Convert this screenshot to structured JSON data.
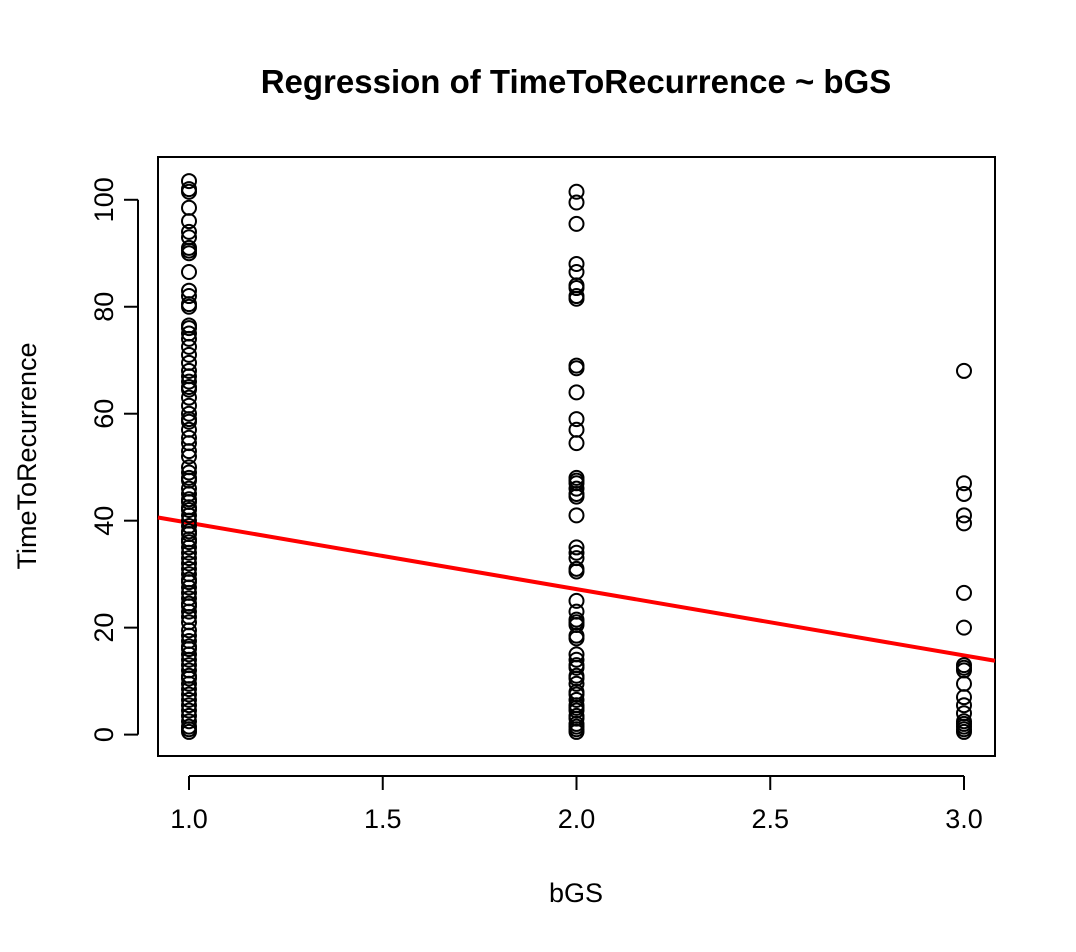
{
  "chart_data": {
    "type": "scatter",
    "title": "Regression of TimeToRecurrence ~ bGS",
    "xlabel": "bGS",
    "ylabel": "TimeToRecurrence",
    "xlim": [
      0.92,
      3.08
    ],
    "ylim": [
      -4,
      108
    ],
    "xticks": [
      1.0,
      1.5,
      2.0,
      2.5,
      3.0
    ],
    "xtick_labels": [
      "1.0",
      "1.5",
      "2.0",
      "2.5",
      "3.0"
    ],
    "yticks": [
      0,
      20,
      40,
      60,
      80,
      100
    ],
    "ytick_labels": [
      "0",
      "20",
      "40",
      "60",
      "80",
      "100"
    ],
    "grid": false,
    "point_color": "#000000",
    "regression_color": "#ff0000",
    "regression_line": {
      "intercept": 52.0,
      "slope": -12.4
    },
    "series": [
      {
        "x": 1.0,
        "y": [
          103.5,
          102,
          101.5,
          98.5,
          96,
          94,
          93,
          91,
          90.5,
          90,
          86.5,
          83,
          82,
          80.5,
          80,
          76.5,
          76,
          75,
          74,
          72.5,
          71,
          69.5,
          68,
          67,
          66,
          65,
          64.5,
          63,
          61.5,
          60,
          59,
          58.5,
          57,
          55.5,
          54.5,
          53,
          52,
          50,
          49,
          48,
          47.5,
          46,
          45,
          44,
          43.5,
          42.5,
          42,
          41,
          40,
          39,
          38,
          37.5,
          36.5,
          36,
          35,
          34,
          33,
          32,
          31,
          30,
          29,
          28.5,
          27.5,
          26.5,
          25.5,
          24.5,
          24,
          23,
          22,
          21,
          19.5,
          18.5,
          17.5,
          16.5,
          16,
          15,
          14,
          13,
          12,
          11,
          10.5,
          9.5,
          8.5,
          7.5,
          6.5,
          5.5,
          4.5,
          3.5,
          2.5,
          1.5,
          1,
          0.5
        ]
      },
      {
        "x": 2.0,
        "y": [
          101.5,
          99.5,
          95.5,
          88,
          86.5,
          84,
          83.5,
          82,
          81.5,
          69,
          68.5,
          64,
          59,
          57,
          54.5,
          48,
          47.5,
          47,
          46,
          45,
          44.5,
          41,
          35,
          34,
          33,
          31,
          30.5,
          25,
          23,
          21.5,
          21,
          20.5,
          18.5,
          18,
          15,
          14,
          13,
          12.5,
          11,
          10.5,
          9.5,
          8,
          7.5,
          6.5,
          5.5,
          5,
          4.5,
          3.5,
          3,
          2,
          1.5,
          1,
          0.5
        ]
      },
      {
        "x": 3.0,
        "y": [
          68,
          47,
          45,
          41,
          39.5,
          26.5,
          20,
          13,
          12.5,
          12,
          9.5,
          7,
          5.5,
          4,
          2.5,
          2,
          1.5,
          1,
          0.5
        ]
      }
    ]
  }
}
